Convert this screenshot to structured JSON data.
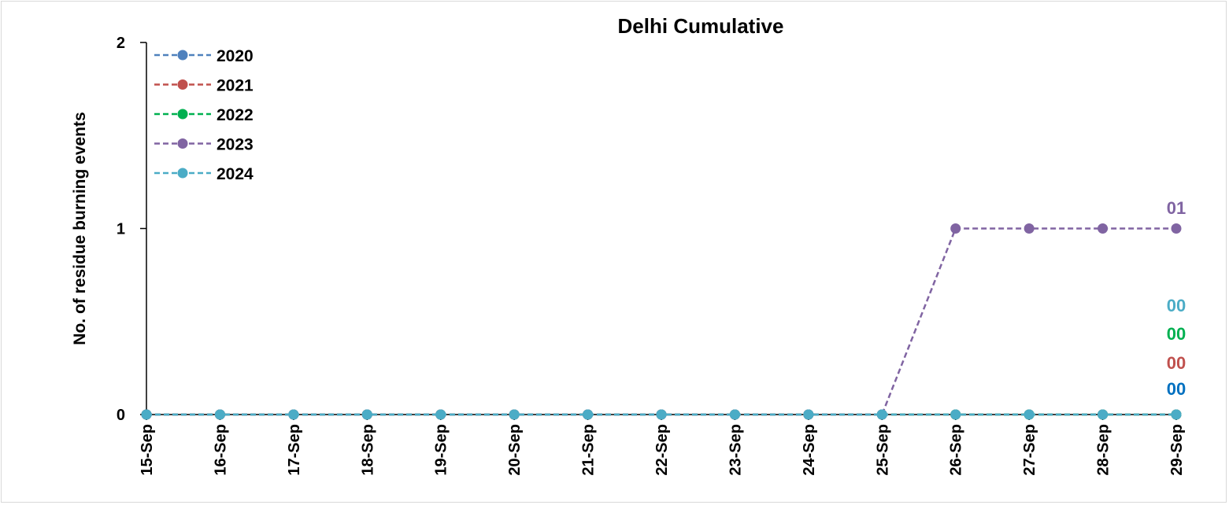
{
  "chart_data": {
    "type": "line",
    "title": "Delhi Cumulative",
    "xlabel": "",
    "ylabel": "No. of residue burning events",
    "categories": [
      "15-Sep",
      "16-Sep",
      "17-Sep",
      "18-Sep",
      "19-Sep",
      "20-Sep",
      "21-Sep",
      "22-Sep",
      "23-Sep",
      "24-Sep",
      "25-Sep",
      "26-Sep",
      "27-Sep",
      "28-Sep",
      "29-Sep"
    ],
    "ylim": [
      0,
      2
    ],
    "yticks": [
      "0",
      "1",
      "2"
    ],
    "grid": false,
    "legend_position": "top-left",
    "series": [
      {
        "name": "2020",
        "color": "#4f81bd",
        "values": [
          0,
          0,
          0,
          0,
          0,
          0,
          0,
          0,
          0,
          0,
          0,
          0,
          0,
          0,
          0
        ]
      },
      {
        "name": "2021",
        "color": "#c0504d",
        "values": [
          0,
          0,
          0,
          0,
          0,
          0,
          0,
          0,
          0,
          0,
          0,
          0,
          0,
          0,
          0
        ]
      },
      {
        "name": "2022",
        "color": "#00b050",
        "values": [
          0,
          0,
          0,
          0,
          0,
          0,
          0,
          0,
          0,
          0,
          0,
          0,
          0,
          0,
          0
        ]
      },
      {
        "name": "2023",
        "color": "#8064a2",
        "values": [
          0,
          0,
          0,
          0,
          0,
          0,
          0,
          0,
          0,
          0,
          0,
          1,
          1,
          1,
          1
        ]
      },
      {
        "name": "2024",
        "color": "#4bacc6",
        "values": [
          0,
          0,
          0,
          0,
          0,
          0,
          0,
          0,
          0,
          0,
          0,
          0,
          0,
          0,
          0
        ]
      }
    ],
    "end_labels": [
      {
        "text": "01",
        "color": "#8064a2"
      },
      {
        "text": "00",
        "color": "#4bacc6"
      },
      {
        "text": "00",
        "color": "#00b050"
      },
      {
        "text": "00",
        "color": "#c0504d"
      },
      {
        "text": "00",
        "color": "#0070c0"
      }
    ]
  }
}
